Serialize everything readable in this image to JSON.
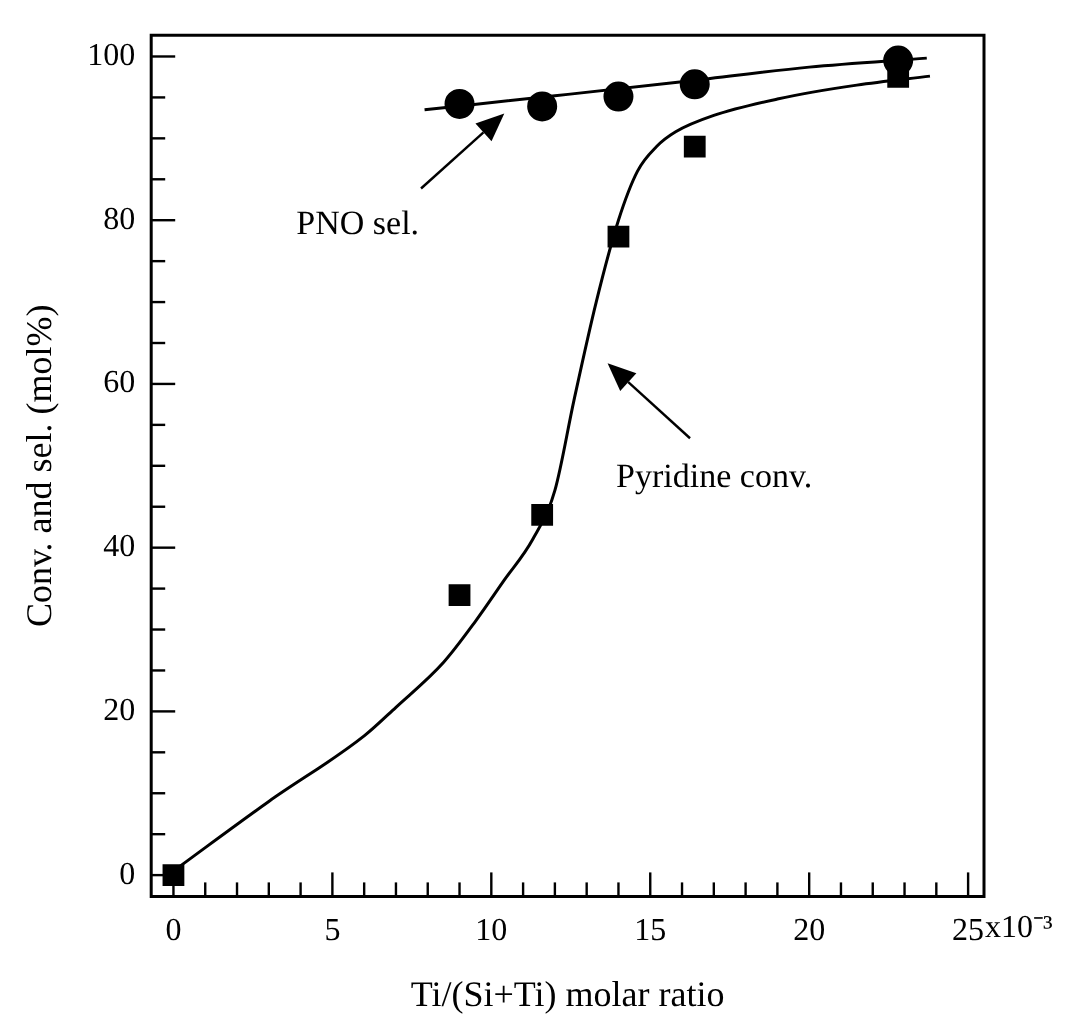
{
  "chart_data": {
    "type": "scatter",
    "xlabel": "Ti/(Si+Ti) molar ratio",
    "ylabel": "Conv. and sel. (mol%)",
    "xlim": [
      -0.7,
      25.5
    ],
    "ylim": [
      -2.6,
      102.6
    ],
    "xticks": [
      0,
      {
        "value": 1,
        "label": null
      },
      {
        "value": 2,
        "label": null
      },
      {
        "value": 3,
        "label": null
      },
      {
        "value": 4,
        "label": null
      },
      5,
      {
        "value": 6,
        "label": null
      },
      {
        "value": 7,
        "label": null
      },
      {
        "value": 8,
        "label": null
      },
      {
        "value": 9,
        "label": null
      },
      10,
      {
        "value": 11,
        "label": null
      },
      {
        "value": 12,
        "label": null
      },
      {
        "value": 13,
        "label": null
      },
      {
        "value": 14,
        "label": null
      },
      15,
      {
        "value": 16,
        "label": null
      },
      {
        "value": 17,
        "label": null
      },
      {
        "value": 18,
        "label": null
      },
      {
        "value": 19,
        "label": null
      },
      20,
      {
        "value": 21,
        "label": null
      },
      {
        "value": 22,
        "label": null
      },
      {
        "value": 23,
        "label": null
      },
      {
        "value": 24,
        "label": null
      },
      25
    ],
    "yticks": [
      0,
      {
        "value": 5,
        "label": null
      },
      {
        "value": 10,
        "label": null
      },
      {
        "value": 15,
        "label": null
      },
      20,
      {
        "value": 25,
        "label": null
      },
      {
        "value": 30,
        "label": null
      },
      {
        "value": 35,
        "label": null
      },
      40,
      {
        "value": 45,
        "label": null
      },
      {
        "value": 50,
        "label": null
      },
      {
        "value": 55,
        "label": null
      },
      60,
      {
        "value": 65,
        "label": null
      },
      {
        "value": 70,
        "label": null
      },
      {
        "value": 75,
        "label": null
      },
      80,
      {
        "value": 85,
        "label": null
      },
      {
        "value": 90,
        "label": null
      },
      {
        "value": 95,
        "label": null
      },
      100
    ],
    "grid": false,
    "legend": false,
    "series": [
      {
        "marker": "square",
        "color": "#000000",
        "x": [
          0,
          9.0,
          11.6,
          14.0,
          16.4,
          22.8
        ],
        "values": [
          0,
          34.2,
          44,
          78,
          89,
          97.5
        ]
      },
      {
        "marker": "circle",
        "color": "#000000",
        "x": [
          9.0,
          11.6,
          14.0,
          16.4,
          22.8
        ],
        "values": [
          94.2,
          93.9,
          95.1,
          96.6,
          99.5
        ]
      },
      {
        "type": "line",
        "marker": "none",
        "color": "#000000",
        "x": [
          0,
          3,
          6,
          7,
          8.5,
          9.5,
          10.4,
          11.3,
          12,
          12.6,
          13.3,
          14,
          14.6,
          15.2,
          15.8,
          17,
          19,
          21.5,
          23.8
        ],
        "values": [
          0.5,
          9,
          17,
          20.5,
          26,
          31,
          36,
          41,
          47,
          58,
          70,
          80,
          86,
          89,
          90.8,
          92.8,
          94.8,
          96.5,
          97.6
        ]
      },
      {
        "type": "line",
        "marker": "none",
        "color": "#000000",
        "x": [
          7.9,
          12,
          16,
          20,
          23.7
        ],
        "values": [
          93.5,
          95.2,
          96.9,
          98.7,
          99.8
        ]
      }
    ],
    "annotations": [
      "PNO sel.",
      "Pyridine conv.",
      "x10⁻³"
    ]
  }
}
